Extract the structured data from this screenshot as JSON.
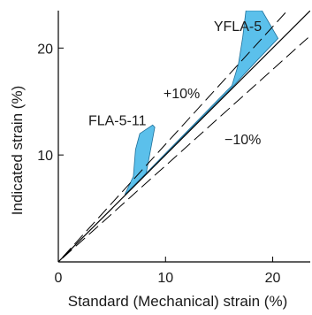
{
  "chart_data": {
    "type": "line",
    "xlabel": "Standard (Mechanical) strain (%)",
    "ylabel": "Indicated strain (%)",
    "xlim": [
      0,
      23.5
    ],
    "ylim": [
      0,
      23.5
    ],
    "x_ticks": [
      0,
      10,
      20
    ],
    "x_tick_labels": [
      "0",
      "10",
      "20"
    ],
    "y_ticks": [
      10,
      20
    ],
    "y_tick_labels": [
      "10",
      "20"
    ],
    "grid": false,
    "colors": {
      "band_fill": "#5bc0eb",
      "band_edge": "#1f6f99",
      "line": "#000000"
    },
    "reference_lines": [
      {
        "label": "",
        "style": "solid",
        "x": [
          0,
          23.5
        ],
        "y": [
          0,
          23.5
        ]
      },
      {
        "label": "+10%",
        "style": "dashed",
        "x": [
          0.4,
          22.4
        ],
        "y": [
          0.44,
          24.64
        ]
      },
      {
        "label": "−10%",
        "style": "dashed",
        "x": [
          0.4,
          23.3
        ],
        "y": [
          0.36,
          20.97
        ]
      }
    ],
    "bands": [
      {
        "name": "FLA-5-11",
        "x_lower": [
          6.2,
          7.3,
          8.2
        ],
        "y_lower": [
          6.3,
          7.4,
          8.3
        ],
        "x_upper": [
          7.0,
          7.2,
          7.6,
          8.8,
          9.0,
          8.2
        ],
        "y_upper": [
          8.0,
          10.5,
          12.0,
          12.8,
          12.6,
          8.3
        ]
      },
      {
        "name": "YFLA-5",
        "x_lower": [
          7.8,
          12.0,
          16.0,
          18.5,
          20.5
        ],
        "y_lower": [
          7.9,
          12.1,
          16.1,
          18.8,
          20.9
        ],
        "x_upper": [
          16.2,
          16.8,
          17.2,
          17.5,
          19.0,
          20.5
        ],
        "y_upper": [
          16.5,
          18.5,
          21.0,
          23.5,
          23.5,
          20.9
        ]
      }
    ],
    "annotations": [
      {
        "text": "YFLA-5",
        "x": 14.5,
        "y": 21.6
      },
      {
        "text": "FLA-5-11",
        "x": 2.8,
        "y": 12.8
      },
      {
        "text": "+10%",
        "x": 9.8,
        "y": 15.3
      },
      {
        "text": "−10%",
        "x": 15.5,
        "y": 11.0
      }
    ]
  }
}
